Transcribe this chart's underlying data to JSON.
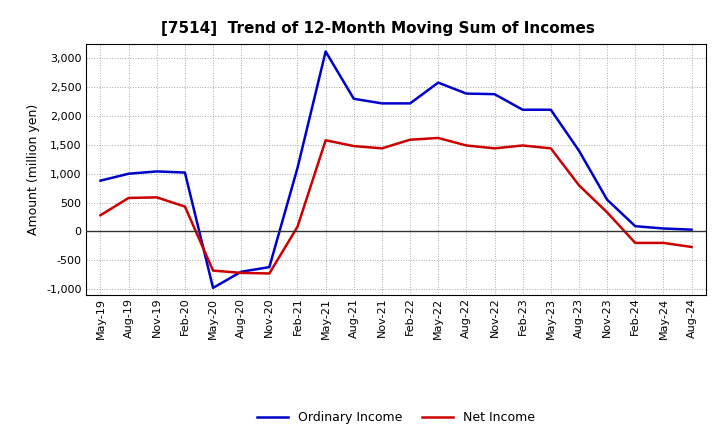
{
  "title": "[7514]  Trend of 12-Month Moving Sum of Incomes",
  "ylabel": "Amount (million yen)",
  "x_labels": [
    "May-19",
    "Aug-19",
    "Nov-19",
    "Feb-20",
    "May-20",
    "Aug-20",
    "Nov-20",
    "Feb-21",
    "May-21",
    "Aug-21",
    "Nov-21",
    "Feb-22",
    "May-22",
    "Aug-22",
    "Nov-22",
    "Feb-23",
    "May-23",
    "Aug-23",
    "Nov-23",
    "Feb-24",
    "May-24",
    "Aug-24"
  ],
  "ordinary_income": [
    880,
    1000,
    1040,
    1020,
    -980,
    -700,
    -620,
    1100,
    3120,
    2300,
    2220,
    2220,
    2580,
    2390,
    2380,
    2110,
    2110,
    1400,
    550,
    90,
    50,
    30
  ],
  "net_income": [
    280,
    580,
    590,
    430,
    -680,
    -720,
    -730,
    80,
    1580,
    1480,
    1440,
    1590,
    1620,
    1490,
    1440,
    1490,
    1440,
    800,
    330,
    -200,
    -200,
    -270
  ],
  "ordinary_color": "#0000cc",
  "net_color": "#cc0000",
  "ylim": [
    -1100,
    3250
  ],
  "yticks": [
    -1000,
    -500,
    0,
    500,
    1000,
    1500,
    2000,
    2500,
    3000
  ],
  "bg_color": "#ffffff",
  "grid_color": "#aaaaaa",
  "legend_ordinary": "Ordinary Income",
  "legend_net": "Net Income",
  "title_fontsize": 11,
  "ylabel_fontsize": 9,
  "tick_fontsize": 8,
  "legend_fontsize": 9
}
